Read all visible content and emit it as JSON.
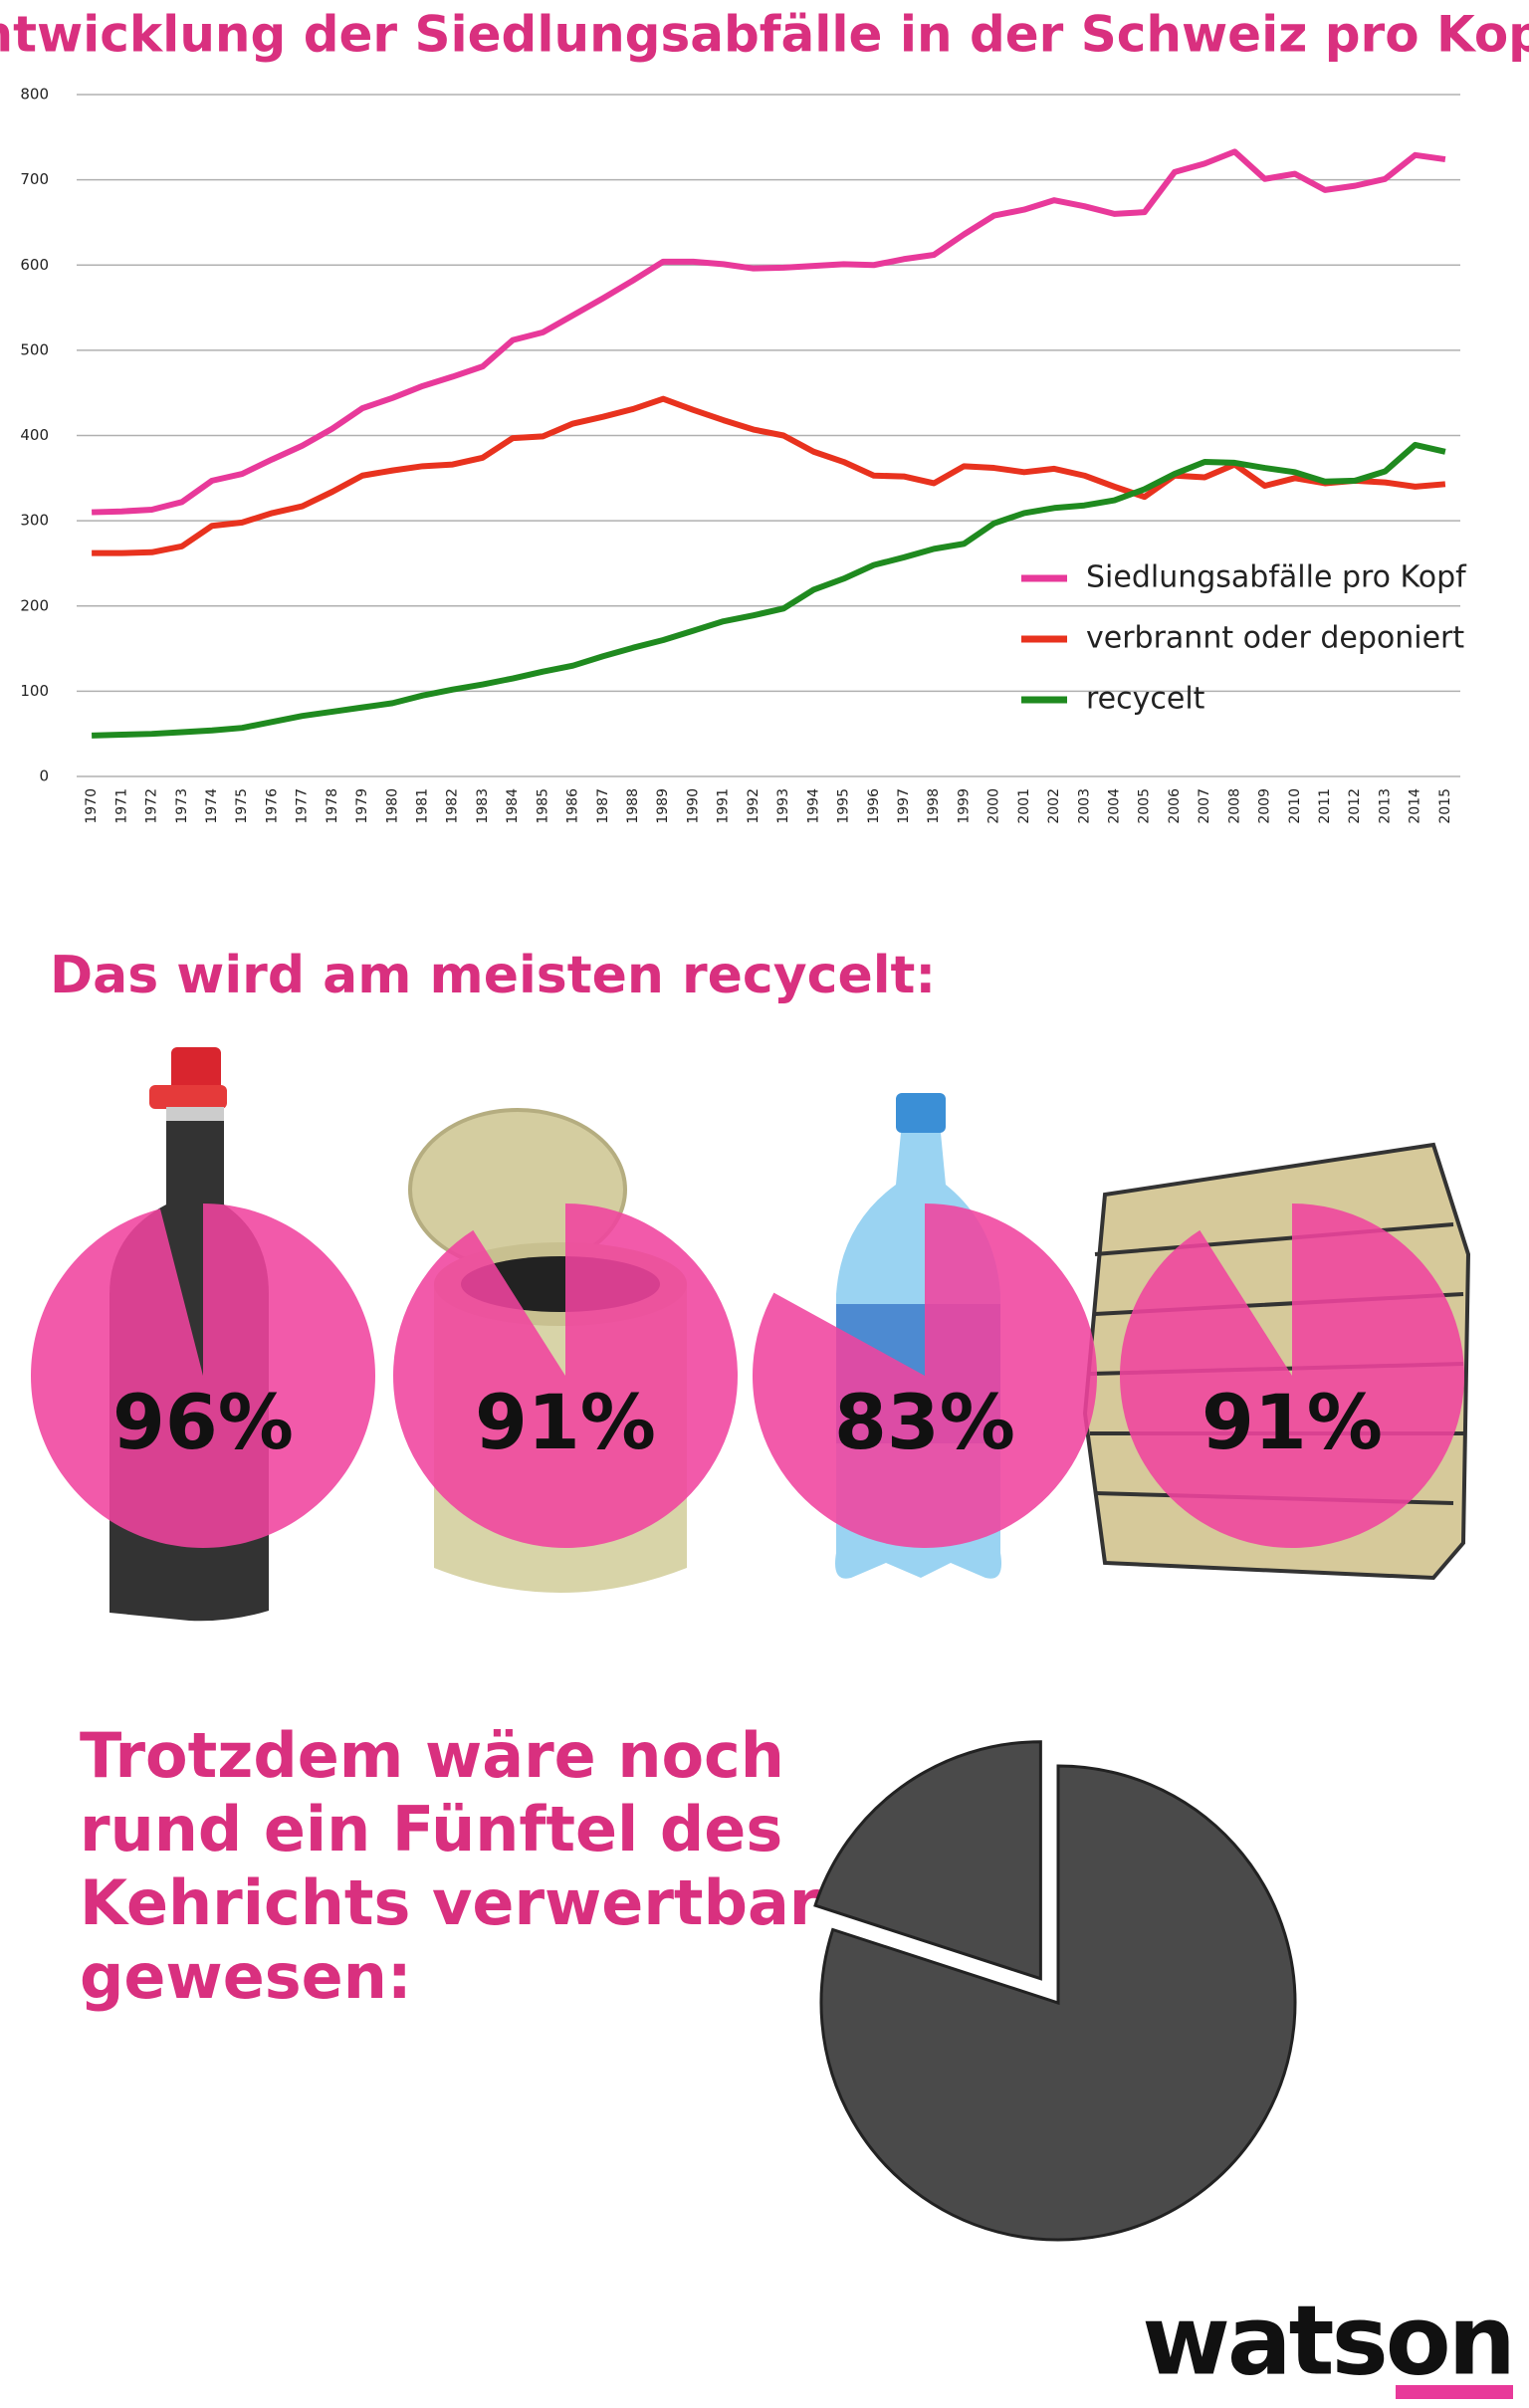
{
  "chart_data": [
    {
      "type": "line",
      "title": "Entwicklung der Siedlungsabfälle in der Schweiz pro Kopf:",
      "categories": [
        "1970",
        "1971",
        "1972",
        "1973",
        "1974",
        "1975",
        "1976",
        "1977",
        "1978",
        "1979",
        "1980",
        "1981",
        "1982",
        "1983",
        "1984",
        "1985",
        "1986",
        "1987",
        "1988",
        "1989",
        "1990",
        "1991",
        "1992",
        "1993",
        "1994",
        "1995",
        "1996",
        "1997",
        "1998",
        "1999",
        "2000",
        "2001",
        "2002",
        "2003",
        "2004",
        "2005",
        "2006",
        "2007",
        "2008",
        "2009",
        "2010",
        "2011",
        "2012",
        "2013",
        "2014",
        "2015"
      ],
      "series": [
        {
          "name": "Siedlungsabfälle pro Kopf",
          "color": "#e8399a",
          "values": [
            310,
            311,
            313,
            322,
            347,
            355,
            372,
            388,
            408,
            432,
            444,
            458,
            469,
            481,
            512,
            521,
            541,
            561,
            582,
            604,
            604,
            601,
            596,
            597,
            599,
            601,
            600,
            607,
            612,
            636,
            658,
            665,
            676,
            669,
            660,
            662,
            709,
            719,
            733,
            701,
            707,
            688,
            693,
            701,
            729,
            724
          ]
        },
        {
          "name": "verbrannt oder deponiert",
          "color": "#e8321e",
          "values": [
            262,
            262,
            263,
            270,
            294,
            298,
            309,
            317,
            334,
            353,
            359,
            364,
            366,
            374,
            397,
            399,
            414,
            422,
            431,
            443,
            430,
            418,
            407,
            400,
            381,
            369,
            353,
            352,
            344,
            364,
            362,
            357,
            361,
            353,
            340,
            328,
            353,
            351,
            366,
            341,
            350,
            344,
            347,
            345,
            340,
            343
          ]
        },
        {
          "name": "recycelt",
          "color": "#1f8a1f",
          "values": [
            48,
            49,
            50,
            52,
            54,
            57,
            64,
            71,
            76,
            81,
            86,
            95,
            102,
            108,
            115,
            123,
            130,
            141,
            151,
            160,
            171,
            182,
            189,
            197,
            219,
            232,
            248,
            257,
            267,
            273,
            297,
            309,
            315,
            318,
            324,
            337,
            355,
            369,
            368,
            362,
            357,
            346,
            347,
            358,
            389,
            381
          ]
        }
      ],
      "ylim": [
        0,
        800
      ],
      "yticks": [
        0,
        100,
        200,
        300,
        400,
        500,
        600,
        700,
        800
      ],
      "grid": true,
      "legend": "lower-right"
    },
    {
      "type": "pie",
      "title": "Das wird am meisten recycelt:",
      "values": [
        96,
        91,
        83,
        91
      ],
      "value_labels": [
        "96%",
        "91%",
        "83%",
        "91%"
      ],
      "color": "#f0439e"
    },
    {
      "type": "pie",
      "title": [
        "Trotzdem wäre noch",
        "rund ein Fünftel des",
        "Kehrichts verwertbar",
        "gewesen:"
      ],
      "values": [
        80,
        20
      ],
      "color": "#4a4a4a"
    }
  ],
  "logo": "watson"
}
